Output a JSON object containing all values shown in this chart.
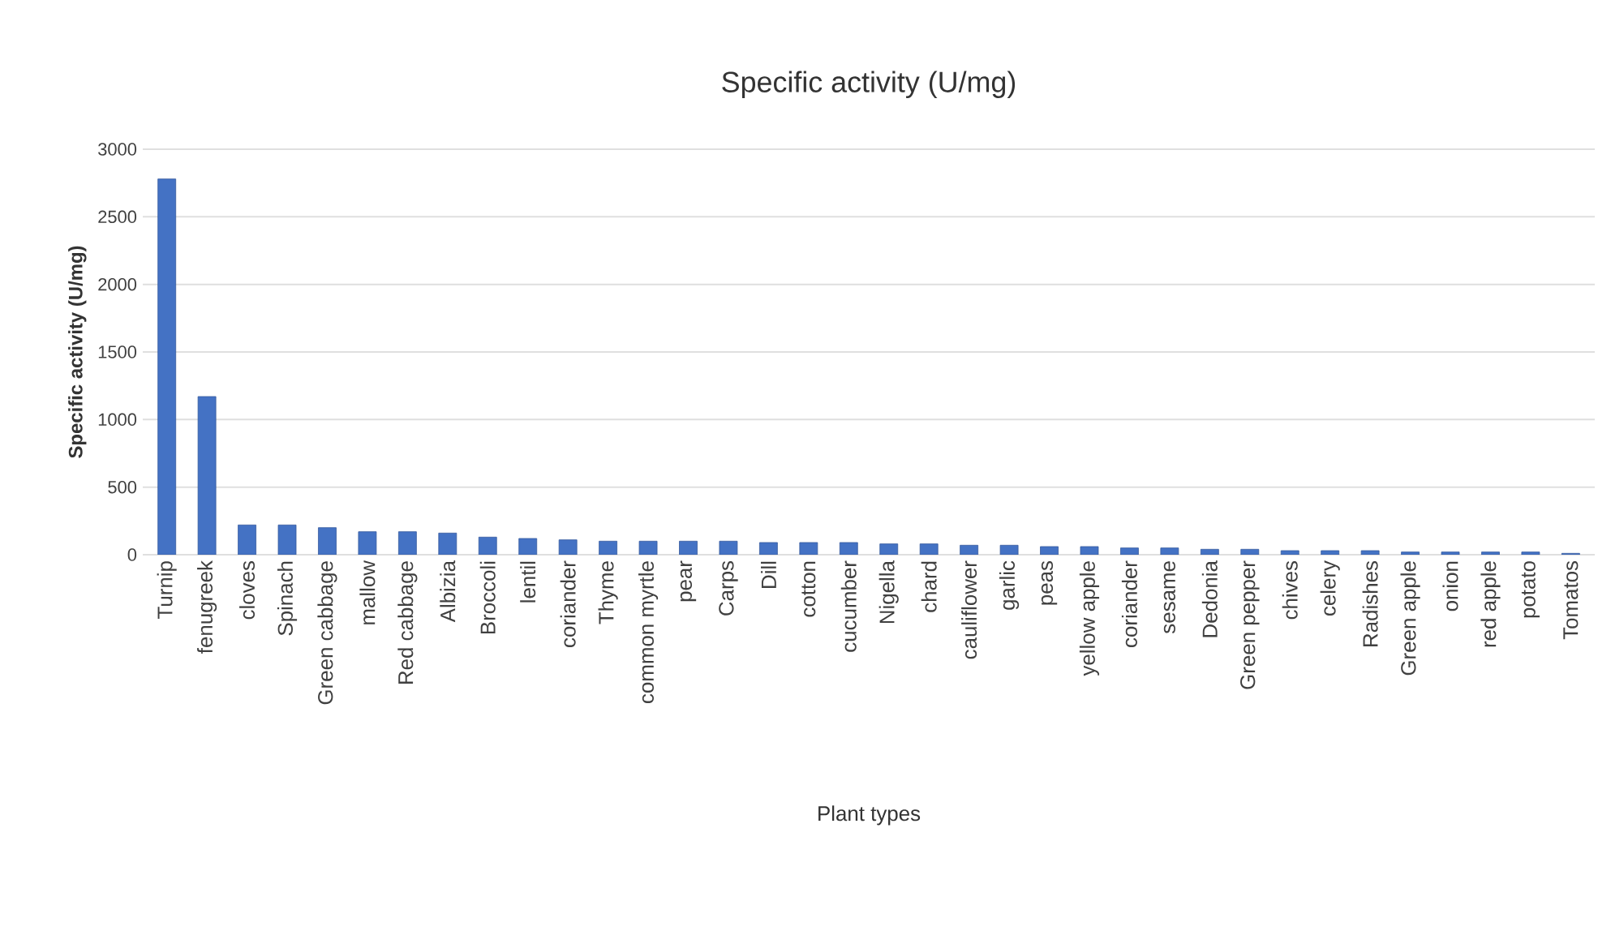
{
  "chart_data": {
    "type": "bar",
    "title": "Specific activity (U/mg)",
    "xlabel": "Plant types",
    "ylabel": "Specific activity (U/mg)",
    "categories": [
      "Turnip",
      "fenugreek",
      "cloves",
      "Spinach",
      "Green cabbage",
      "mallow",
      "Red cabbage",
      "Albizia",
      "Broccoli",
      "lentil",
      "coriander",
      "Thyme",
      "common myrtle",
      "pear",
      "Carps",
      "Dill",
      "cotton",
      "cucumber",
      "Nigella",
      "chard",
      "cauliflower",
      "garlic",
      "peas",
      "yellow apple",
      "coriander",
      "sesame",
      "Dedonia",
      "Green pepper",
      "chives",
      "celery",
      "Radishes",
      "Green apple",
      "onion",
      "red apple",
      "potato",
      "Tomatos"
    ],
    "values": [
      2780,
      1170,
      220,
      220,
      200,
      170,
      170,
      160,
      130,
      120,
      110,
      100,
      100,
      100,
      100,
      90,
      90,
      90,
      80,
      80,
      70,
      70,
      60,
      60,
      50,
      50,
      40,
      40,
      30,
      30,
      30,
      20,
      20,
      20,
      20,
      10
    ],
    "color": "#4472c4",
    "ylim": [
      0,
      3000
    ],
    "yticks": [
      0,
      500,
      1000,
      1500,
      2000,
      2500,
      3000
    ],
    "grid": "y"
  }
}
